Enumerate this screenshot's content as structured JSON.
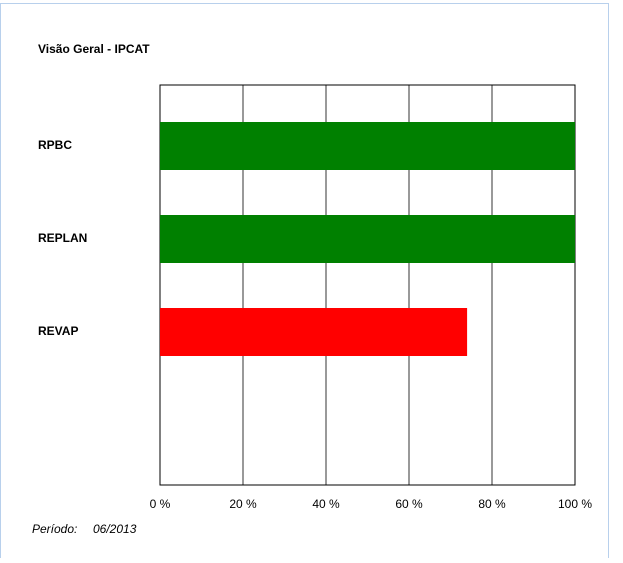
{
  "chart_data": {
    "type": "bar",
    "orientation": "horizontal",
    "title": "Visão Geral - IPCAT",
    "categories": [
      "RPBC",
      "REPLAN",
      "REVAP",
      null
    ],
    "values": [
      100,
      100,
      74,
      0
    ],
    "colors": [
      "#008000",
      "#008000",
      "#ff0000",
      "#ff0000"
    ],
    "xlim": [
      0,
      100
    ],
    "xticks": [
      {
        "value": 0,
        "label": "0 %"
      },
      {
        "value": 20,
        "label": "20 %"
      },
      {
        "value": 40,
        "label": "40 %"
      },
      {
        "value": 60,
        "label": "60 %"
      },
      {
        "value": 80,
        "label": "80 %"
      },
      {
        "value": 100,
        "label": "100 %"
      }
    ],
    "grid": true,
    "footer": {
      "label": "Período:",
      "value": "06/2013"
    }
  }
}
